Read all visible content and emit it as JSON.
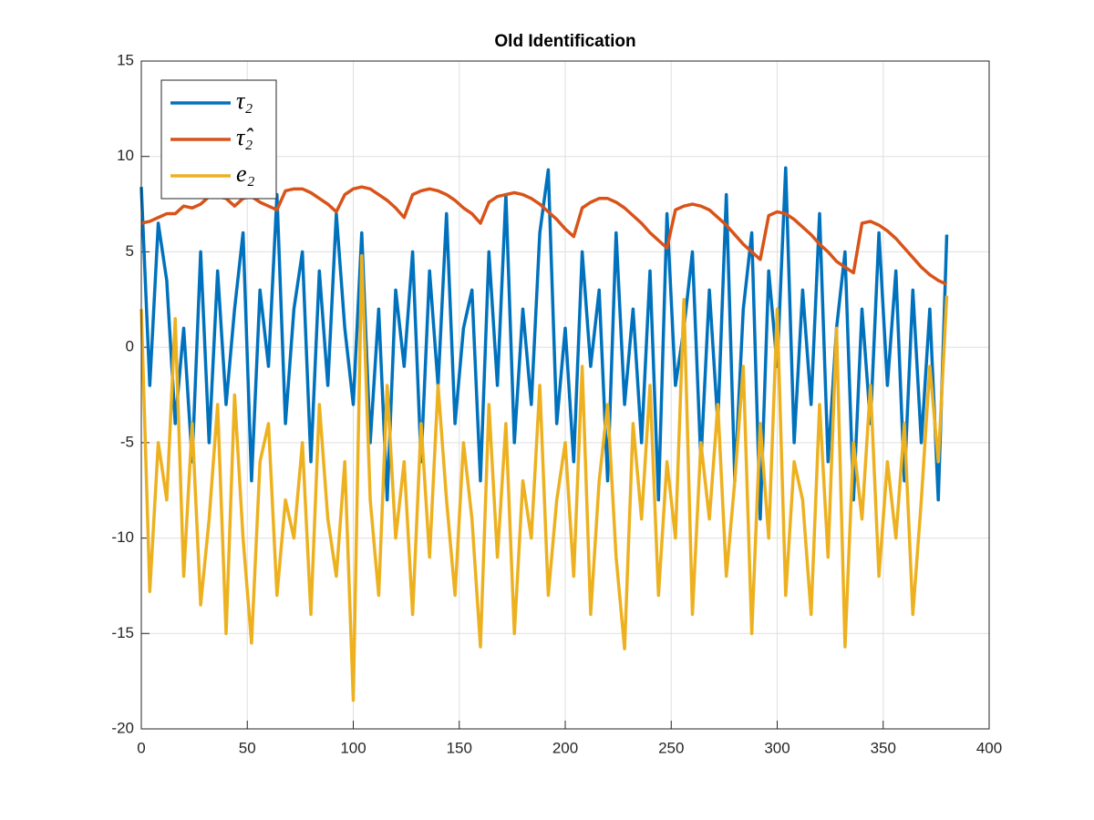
{
  "chart_data": {
    "type": "line",
    "title": "Old Identification",
    "xlim": [
      0,
      400
    ],
    "xticks": [
      0,
      50,
      100,
      150,
      200,
      250,
      300,
      350,
      400
    ],
    "ylim": [
      -20,
      15
    ],
    "yticks": [
      -20,
      -15,
      -10,
      -5,
      0,
      5,
      10,
      15
    ],
    "grid": true,
    "legend": "upper-left",
    "x": [
      0,
      4,
      8,
      12,
      16,
      20,
      24,
      28,
      32,
      36,
      40,
      44,
      48,
      52,
      56,
      60,
      64,
      68,
      72,
      76,
      80,
      84,
      88,
      92,
      96,
      100,
      104,
      108,
      112,
      116,
      120,
      124,
      128,
      132,
      136,
      140,
      144,
      148,
      152,
      156,
      160,
      164,
      168,
      172,
      176,
      180,
      184,
      188,
      192,
      196,
      200,
      204,
      208,
      212,
      216,
      220,
      224,
      228,
      232,
      236,
      240,
      244,
      248,
      252,
      256,
      260,
      264,
      268,
      272,
      276,
      280,
      284,
      288,
      292,
      296,
      300,
      304,
      308,
      312,
      316,
      320,
      324,
      328,
      332,
      336,
      340,
      344,
      348,
      352,
      356,
      360,
      364,
      368,
      372,
      376,
      380
    ],
    "series": [
      {
        "name": "τ₂",
        "color": "#0072bd",
        "values": [
          8.4,
          -2,
          6.5,
          3.5,
          -4,
          1,
          -6,
          5,
          -5,
          4,
          -3,
          2,
          6,
          -7,
          3,
          -1,
          8,
          -4,
          2,
          5,
          -6,
          4,
          -2,
          7,
          1,
          -3,
          6,
          -5,
          2,
          -8,
          3,
          -1,
          5,
          -6,
          4,
          -2,
          7,
          -4,
          1,
          3,
          -7,
          5,
          -2,
          8,
          -5,
          2,
          -3,
          6,
          9.3,
          -4,
          1,
          -6,
          5,
          -1,
          3,
          -7,
          6,
          -3,
          2,
          -5,
          4,
          -8,
          7,
          -2,
          1,
          5,
          -6,
          3,
          -4,
          8,
          -7,
          2,
          6,
          -9,
          4,
          -1,
          9.4,
          -5,
          3,
          -3,
          7,
          -6,
          1,
          5,
          -8,
          2,
          -4,
          6,
          -2,
          4,
          -7,
          3,
          -5,
          2,
          -8,
          5.9
        ]
      },
      {
        "name": "τ̂₂",
        "color": "#d95319",
        "values": [
          6.5,
          6.6,
          6.8,
          7.0,
          7.0,
          7.4,
          7.3,
          7.5,
          7.9,
          7.9,
          7.8,
          7.4,
          7.8,
          7.9,
          7.6,
          7.4,
          7.2,
          8.2,
          8.3,
          8.3,
          8.1,
          7.8,
          7.5,
          7.1,
          8.0,
          8.3,
          8.4,
          8.3,
          8.0,
          7.7,
          7.3,
          6.8,
          8.0,
          8.2,
          8.3,
          8.2,
          8.0,
          7.7,
          7.3,
          7.0,
          6.5,
          7.6,
          7.9,
          8.0,
          8.1,
          8.0,
          7.8,
          7.5,
          7.1,
          6.7,
          6.2,
          5.8,
          7.3,
          7.6,
          7.8,
          7.8,
          7.6,
          7.3,
          6.9,
          6.5,
          6.0,
          5.6,
          5.2,
          7.2,
          7.4,
          7.5,
          7.4,
          7.2,
          6.8,
          6.4,
          5.9,
          5.4,
          5.0,
          4.6,
          6.9,
          7.1,
          7.0,
          6.7,
          6.3,
          5.9,
          5.4,
          5.0,
          4.5,
          4.2,
          3.9,
          6.5,
          6.6,
          6.4,
          6.1,
          5.7,
          5.2,
          4.7,
          4.2,
          3.8,
          3.5,
          3.3
        ]
      },
      {
        "name": "e₂",
        "color": "#edb120",
        "values": [
          2,
          -12.8,
          -5,
          -8,
          1.5,
          -12,
          -4,
          -13.5,
          -9,
          -3,
          -15,
          -2.5,
          -10,
          -15.5,
          -6,
          -4,
          -13,
          -8,
          -10,
          -5,
          -14,
          -3,
          -9,
          -12,
          -6,
          -18.5,
          4.8,
          -8,
          -13,
          -2,
          -10,
          -6,
          -14,
          -4,
          -11,
          -2,
          -8,
          -13,
          -5,
          -9,
          -15.7,
          -3,
          -11,
          -4,
          -15,
          -7,
          -10,
          -2,
          -13,
          -8,
          -5,
          -12,
          -1,
          -14,
          -7,
          -3,
          -11,
          -15.8,
          -4,
          -9,
          -2,
          -13,
          -6,
          -10,
          2.5,
          -14,
          -5,
          -9,
          -3,
          -12,
          -7,
          -1,
          -15,
          -4,
          -10,
          2,
          -13,
          -6,
          -8,
          -14,
          -3,
          -11,
          1,
          -15.7,
          -5,
          -9,
          -2,
          -12,
          -6,
          -10,
          -4,
          -14,
          -8,
          -1,
          -6,
          2.7
        ]
      }
    ]
  }
}
